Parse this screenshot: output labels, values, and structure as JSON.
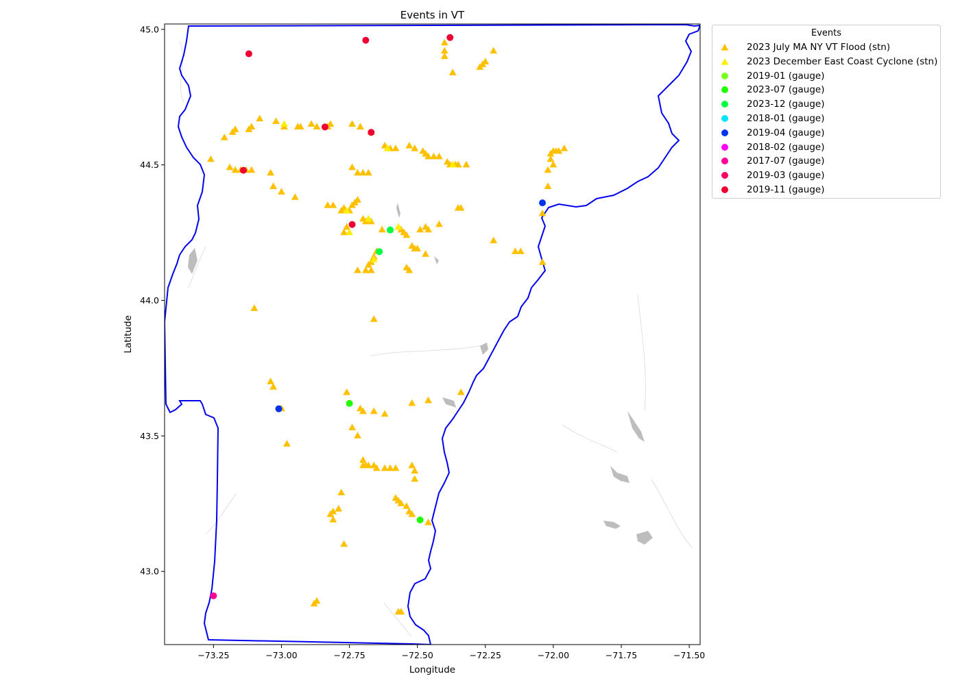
{
  "chart_data": {
    "type": "scatter",
    "title": "Events in VT",
    "xlabel": "Longitude",
    "ylabel": "Latitude",
    "xlim": [
      -73.43,
      -71.46
    ],
    "ylim": [
      42.73,
      45.02
    ],
    "xticks": [
      -73.25,
      -73.0,
      -72.75,
      -72.5,
      -72.25,
      -72.0,
      -71.75,
      -71.5
    ],
    "xtick_labels": [
      "−73.25",
      "−73.00",
      "−72.75",
      "−72.50",
      "−72.25",
      "−72.00",
      "−71.75",
      "−71.50"
    ],
    "yticks": [
      43.0,
      43.5,
      44.0,
      44.5,
      45.0
    ],
    "ytick_labels": [
      "43.0",
      "43.5",
      "44.0",
      "44.5",
      "45.0"
    ],
    "grid": false,
    "legend_title": "Events",
    "legend_position": "outside-upper-right",
    "series": [
      {
        "name": "2023 July MA NY VT Flood (stn)",
        "marker": "triangle",
        "color": "#ffc000",
        "points": [
          [
            -73.26,
            44.52
          ],
          [
            -73.21,
            44.6
          ],
          [
            -73.18,
            44.62
          ],
          [
            -73.17,
            44.63
          ],
          [
            -73.12,
            44.63
          ],
          [
            -73.11,
            44.64
          ],
          [
            -73.08,
            44.67
          ],
          [
            -73.02,
            44.66
          ],
          [
            -72.99,
            44.64
          ],
          [
            -72.94,
            44.64
          ],
          [
            -72.93,
            44.64
          ],
          [
            -72.89,
            44.65
          ],
          [
            -72.87,
            44.64
          ],
          [
            -72.83,
            44.64
          ],
          [
            -72.82,
            44.65
          ],
          [
            -72.74,
            44.65
          ],
          [
            -72.71,
            44.64
          ],
          [
            -72.67,
            44.62
          ],
          [
            -72.62,
            44.57
          ],
          [
            -72.6,
            44.56
          ],
          [
            -72.58,
            44.56
          ],
          [
            -72.53,
            44.57
          ],
          [
            -72.51,
            44.56
          ],
          [
            -72.48,
            44.55
          ],
          [
            -72.47,
            44.54
          ],
          [
            -72.46,
            44.53
          ],
          [
            -72.44,
            44.53
          ],
          [
            -72.42,
            44.53
          ],
          [
            -72.39,
            44.51
          ],
          [
            -72.38,
            44.5
          ],
          [
            -72.36,
            44.5
          ],
          [
            -72.35,
            44.5
          ],
          [
            -72.32,
            44.5
          ],
          [
            -73.19,
            44.49
          ],
          [
            -73.17,
            44.48
          ],
          [
            -73.15,
            44.48
          ],
          [
            -73.13,
            44.48
          ],
          [
            -73.11,
            44.48
          ],
          [
            -73.04,
            44.47
          ],
          [
            -73.03,
            44.42
          ],
          [
            -73.0,
            44.4
          ],
          [
            -72.95,
            44.38
          ],
          [
            -72.74,
            44.49
          ],
          [
            -72.72,
            44.47
          ],
          [
            -72.7,
            44.47
          ],
          [
            -72.68,
            44.47
          ],
          [
            -72.83,
            44.35
          ],
          [
            -72.81,
            44.35
          ],
          [
            -72.78,
            44.33
          ],
          [
            -72.77,
            44.34
          ],
          [
            -72.75,
            44.33
          ],
          [
            -72.74,
            44.35
          ],
          [
            -72.73,
            44.36
          ],
          [
            -72.72,
            44.37
          ],
          [
            -72.76,
            44.27
          ],
          [
            -72.77,
            44.25
          ],
          [
            -72.7,
            44.3
          ],
          [
            -72.69,
            44.29
          ],
          [
            -72.67,
            44.29
          ],
          [
            -72.63,
            44.26
          ],
          [
            -72.6,
            44.26
          ],
          [
            -72.57,
            44.27
          ],
          [
            -72.56,
            44.26
          ],
          [
            -72.55,
            44.25
          ],
          [
            -72.54,
            44.24
          ],
          [
            -72.52,
            44.2
          ],
          [
            -72.51,
            44.19
          ],
          [
            -72.5,
            44.19
          ],
          [
            -72.47,
            44.17
          ],
          [
            -72.49,
            44.26
          ],
          [
            -72.47,
            44.27
          ],
          [
            -72.46,
            44.26
          ],
          [
            -72.42,
            44.28
          ],
          [
            -72.35,
            44.34
          ],
          [
            -72.34,
            44.34
          ],
          [
            -72.22,
            44.22
          ],
          [
            -72.14,
            44.18
          ],
          [
            -72.12,
            44.18
          ],
          [
            -72.65,
            44.18
          ],
          [
            -72.66,
            44.16
          ],
          [
            -72.67,
            44.14
          ],
          [
            -72.68,
            44.13
          ],
          [
            -72.72,
            44.11
          ],
          [
            -72.69,
            44.11
          ],
          [
            -72.67,
            44.11
          ],
          [
            -72.54,
            44.12
          ],
          [
            -72.53,
            44.11
          ],
          [
            -72.04,
            44.14
          ],
          [
            -72.04,
            44.32
          ],
          [
            -72.02,
            44.42
          ],
          [
            -72.02,
            44.48
          ],
          [
            -72.01,
            44.52
          ],
          [
            -72.01,
            44.54
          ],
          [
            -72.0,
            44.55
          ],
          [
            -71.99,
            44.55
          ],
          [
            -71.98,
            44.55
          ],
          [
            -71.96,
            44.56
          ],
          [
            -72.0,
            44.5
          ],
          [
            -73.1,
            43.97
          ],
          [
            -72.66,
            43.93
          ],
          [
            -73.04,
            43.7
          ],
          [
            -73.03,
            43.68
          ],
          [
            -73.0,
            43.6
          ],
          [
            -72.98,
            43.47
          ],
          [
            -72.76,
            43.66
          ],
          [
            -72.74,
            43.53
          ],
          [
            -72.72,
            43.5
          ],
          [
            -72.71,
            43.6
          ],
          [
            -72.7,
            43.59
          ],
          [
            -72.66,
            43.59
          ],
          [
            -72.62,
            43.58
          ],
          [
            -72.52,
            43.62
          ],
          [
            -72.46,
            43.63
          ],
          [
            -72.34,
            43.66
          ],
          [
            -72.7,
            43.41
          ],
          [
            -72.7,
            43.39
          ],
          [
            -72.69,
            43.39
          ],
          [
            -72.68,
            43.39
          ],
          [
            -72.66,
            43.39
          ],
          [
            -72.65,
            43.38
          ],
          [
            -72.62,
            43.38
          ],
          [
            -72.6,
            43.38
          ],
          [
            -72.58,
            43.38
          ],
          [
            -72.52,
            43.39
          ],
          [
            -72.51,
            43.37
          ],
          [
            -72.51,
            43.34
          ],
          [
            -72.78,
            43.29
          ],
          [
            -72.79,
            43.23
          ],
          [
            -72.81,
            43.22
          ],
          [
            -72.82,
            43.21
          ],
          [
            -72.81,
            43.19
          ],
          [
            -72.58,
            43.27
          ],
          [
            -72.57,
            43.26
          ],
          [
            -72.56,
            43.25
          ],
          [
            -72.54,
            43.24
          ],
          [
            -72.53,
            43.22
          ],
          [
            -72.52,
            43.21
          ],
          [
            -72.46,
            43.18
          ],
          [
            -72.77,
            43.1
          ],
          [
            -72.88,
            42.88
          ],
          [
            -72.87,
            42.89
          ],
          [
            -72.57,
            42.85
          ],
          [
            -72.56,
            42.85
          ],
          [
            -72.4,
            44.95
          ],
          [
            -72.4,
            44.92
          ],
          [
            -72.4,
            44.9
          ],
          [
            -72.37,
            44.84
          ],
          [
            -72.27,
            44.86
          ],
          [
            -72.26,
            44.87
          ],
          [
            -72.25,
            44.88
          ],
          [
            -72.22,
            44.92
          ]
        ]
      },
      {
        "name": "2023 December East Coast Cyclone (stn)",
        "marker": "triangle",
        "color": "#ffee00",
        "points": [
          [
            -72.99,
            44.65
          ],
          [
            -72.76,
            44.33
          ],
          [
            -72.68,
            44.3
          ],
          [
            -72.61,
            44.56
          ],
          [
            -72.57,
            44.27
          ],
          [
            -72.37,
            44.5
          ],
          [
            -72.75,
            44.25
          ],
          [
            -72.66,
            44.15
          ]
        ]
      },
      {
        "name": "2019-01 (gauge)",
        "marker": "circle",
        "color": "#7aff20",
        "points": []
      },
      {
        "name": "2023-07 (gauge)",
        "marker": "circle",
        "color": "#22ff00",
        "points": [
          [
            -72.75,
            43.62
          ],
          [
            -72.49,
            43.19
          ]
        ]
      },
      {
        "name": "2023-12 (gauge)",
        "marker": "circle",
        "color": "#00ff44",
        "points": [
          [
            -72.6,
            44.26
          ],
          [
            -72.64,
            44.18
          ]
        ]
      },
      {
        "name": "2018-01 (gauge)",
        "marker": "circle",
        "color": "#00e5ff",
        "points": []
      },
      {
        "name": "2019-04 (gauge)",
        "marker": "circle",
        "color": "#0033ee",
        "points": [
          [
            -73.01,
            43.6
          ],
          [
            -72.04,
            44.36
          ]
        ]
      },
      {
        "name": "2018-02 (gauge)",
        "marker": "circle",
        "color": "#ff00ff",
        "points": []
      },
      {
        "name": "2017-07 (gauge)",
        "marker": "circle",
        "color": "#ff0099",
        "points": [
          [
            -73.25,
            42.91
          ]
        ]
      },
      {
        "name": "2019-03 (gauge)",
        "marker": "circle",
        "color": "#ff0066",
        "points": []
      },
      {
        "name": "2019-11 (gauge)",
        "marker": "circle",
        "color": "#ee0033",
        "points": [
          [
            -73.12,
            44.91
          ],
          [
            -72.69,
            44.96
          ],
          [
            -72.38,
            44.97
          ],
          [
            -72.84,
            44.64
          ],
          [
            -72.67,
            44.62
          ],
          [
            -73.14,
            44.48
          ],
          [
            -72.74,
            44.28
          ]
        ]
      }
    ]
  }
}
